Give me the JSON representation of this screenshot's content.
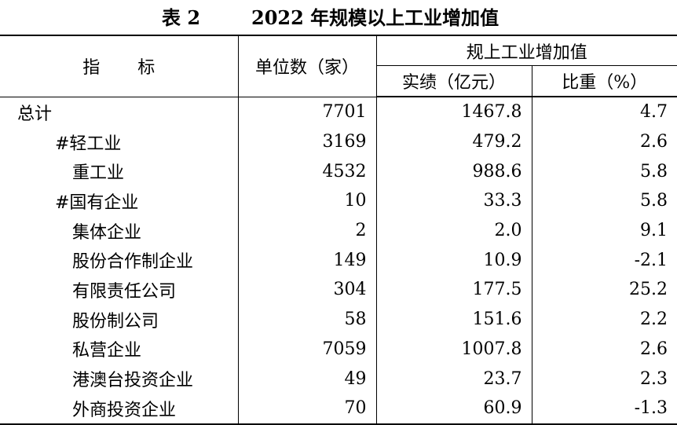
{
  "title": {
    "number": "表 2",
    "text": "2022 年规模以上工业增加值"
  },
  "header": {
    "indicator": "指标",
    "units": "单位数（家）",
    "group": "规上工业增加值",
    "value": "实绩（亿元）",
    "share": "比重（%）"
  },
  "rows": [
    {
      "label": "总计",
      "level": 0,
      "units": "7701",
      "value": "1467.8",
      "share": "4.7"
    },
    {
      "label": "#轻工业",
      "level": 1,
      "units": "3169",
      "value": "479.2",
      "share": "2.6"
    },
    {
      "label": "重工业",
      "level": 2,
      "units": "4532",
      "value": "988.6",
      "share": "5.8"
    },
    {
      "label": "#国有企业",
      "level": 1,
      "units": "10",
      "value": "33.3",
      "share": "5.8"
    },
    {
      "label": "集体企业",
      "level": 2,
      "units": "2",
      "value": "2.0",
      "share": "9.1"
    },
    {
      "label": "股份合作制企业",
      "level": 2,
      "units": "149",
      "value": "10.9",
      "share": "-2.1"
    },
    {
      "label": "有限责任公司",
      "level": 2,
      "units": "304",
      "value": "177.5",
      "share": "25.2"
    },
    {
      "label": "股份制公司",
      "level": 2,
      "units": "58",
      "value": "151.6",
      "share": "2.2"
    },
    {
      "label": "私营企业",
      "level": 2,
      "units": "7059",
      "value": "1007.8",
      "share": "2.6"
    },
    {
      "label": "港澳台投资企业",
      "level": 2,
      "units": "49",
      "value": "23.7",
      "share": "2.3"
    },
    {
      "label": "外商投资企业",
      "level": 2,
      "units": "70",
      "value": "60.9",
      "share": "-1.3"
    }
  ]
}
